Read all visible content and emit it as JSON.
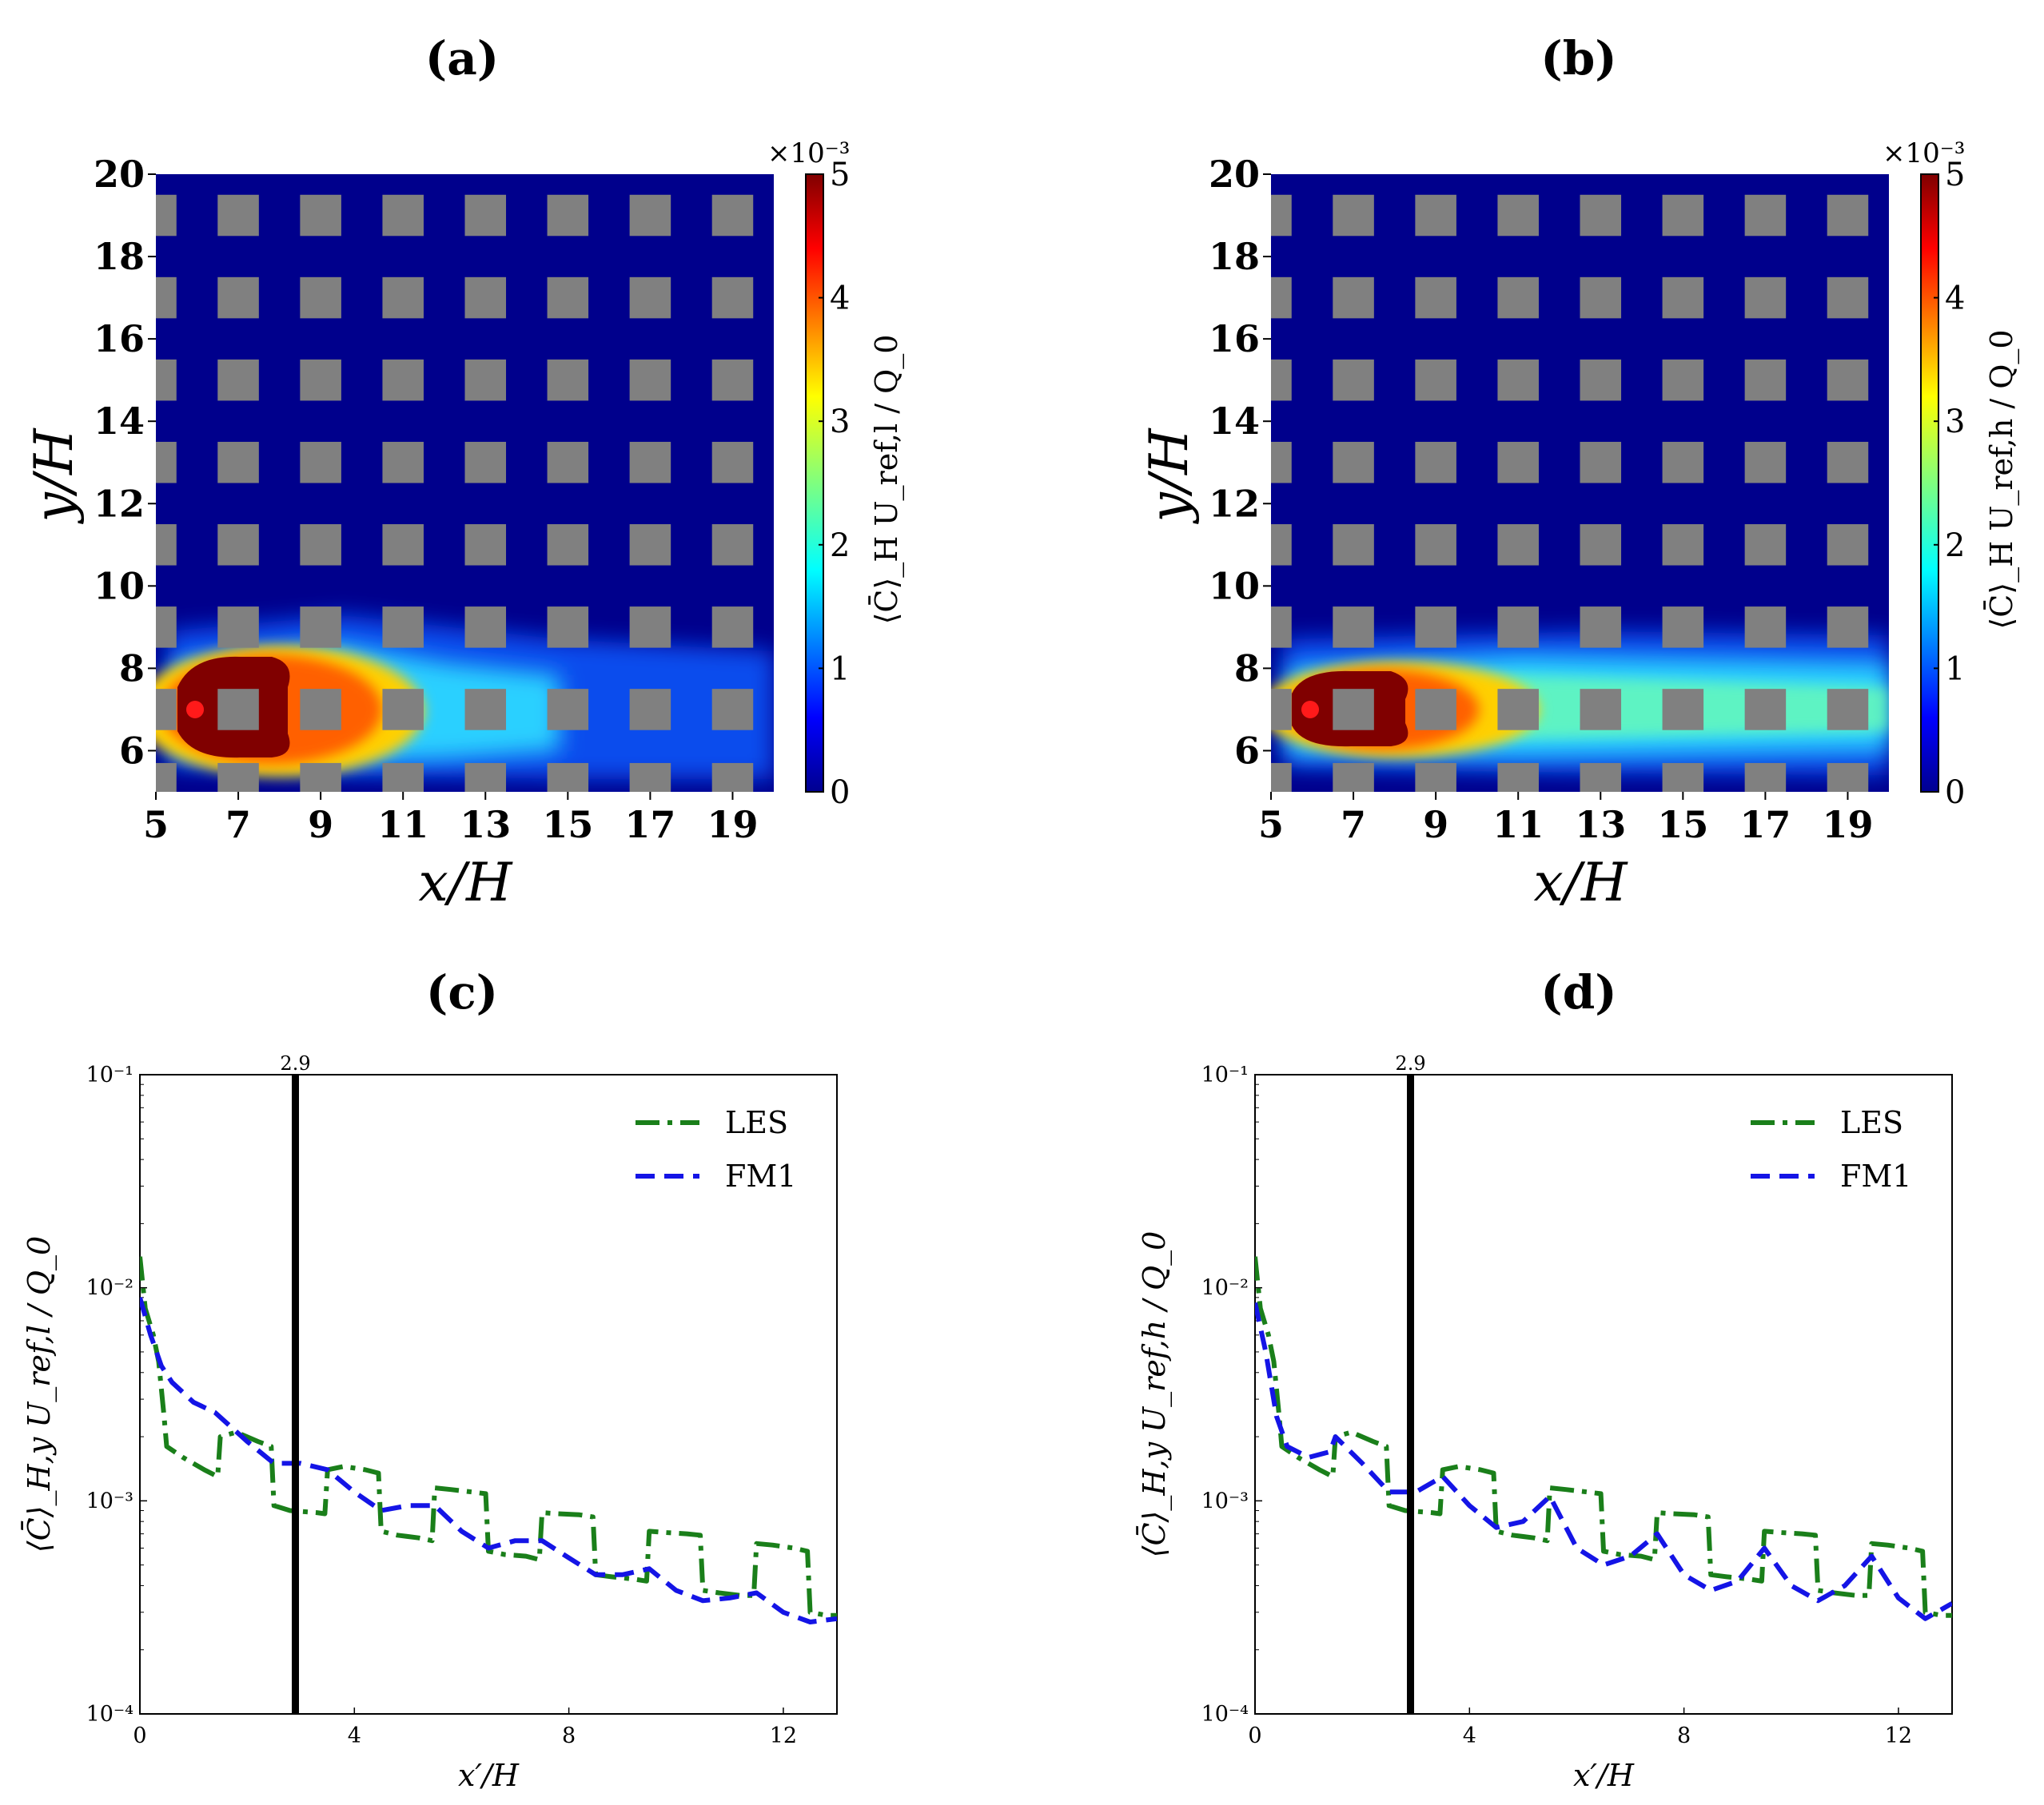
{
  "figure": {
    "panel_labels": [
      "(a)",
      "(b)",
      "(c)",
      "(d)"
    ],
    "colorbar_scale": "×10⁻³",
    "colorbar_ticks": [
      "0",
      "1",
      "2",
      "3",
      "4",
      "5"
    ],
    "colors": {
      "les": "#1a7f1a",
      "fm1": "#1414e6",
      "field_bg": "#00008c",
      "building": "#808080",
      "source": "#ff1a1a",
      "vline": "#000000"
    }
  },
  "chart_data": [
    {
      "panel": "(a)",
      "type": "heatmap",
      "xlabel": "x/H",
      "ylabel": "y/H",
      "xlim": [
        5,
        20
      ],
      "ylim": [
        5,
        20
      ],
      "xticks": [
        5,
        7,
        9,
        11,
        13,
        15,
        17,
        19
      ],
      "yticks": [
        6,
        8,
        10,
        12,
        14,
        16,
        18,
        20
      ],
      "colorbar_label": "⟨C̄⟩_H U_ref,l / Q_0",
      "colorbar_range": [
        0,
        5
      ],
      "colorbar_multiplier": "1e-3",
      "source_point": [
        6,
        7
      ],
      "building_columns_x": [
        5.25,
        7.0,
        9.0,
        11.0,
        13.0,
        15.0,
        17.0,
        19.0
      ],
      "building_rows_y": [
        5.2,
        7.0,
        9.0,
        11.0,
        13.0,
        15.0,
        17.0,
        19.0
      ],
      "plume": "short"
    },
    {
      "panel": "(b)",
      "type": "heatmap",
      "xlabel": "x/H",
      "ylabel": "y/H",
      "xlim": [
        5,
        20
      ],
      "ylim": [
        5,
        20
      ],
      "xticks": [
        5,
        7,
        9,
        11,
        13,
        15,
        17,
        19
      ],
      "yticks": [
        6,
        8,
        10,
        12,
        14,
        16,
        18,
        20
      ],
      "colorbar_label": "⟨C̄⟩_H U_ref,h / Q_0",
      "colorbar_range": [
        0,
        5
      ],
      "colorbar_multiplier": "1e-3",
      "source_point": [
        6,
        7
      ],
      "building_columns_x": [
        5.25,
        7.0,
        9.0,
        11.0,
        13.0,
        15.0,
        17.0,
        19.0
      ],
      "building_rows_y": [
        5.2,
        7.0,
        9.0,
        11.0,
        13.0,
        15.0,
        17.0,
        19.0
      ],
      "plume": "long"
    },
    {
      "panel": "(c)",
      "type": "line",
      "yscale": "log",
      "xlabel": "x′/H",
      "ylabel": "⟨C̄⟩_H,y U_ref,l / Q_0",
      "xlim": [
        0,
        13
      ],
      "ylim": [
        0.0001,
        0.1
      ],
      "xticks": [
        0,
        4,
        8,
        12
      ],
      "yticks": [
        "10⁻⁴",
        "10⁻³",
        "10⁻²",
        "10⁻¹"
      ],
      "vline": {
        "x": 2.9,
        "label": "2.9"
      },
      "legend": [
        "LES",
        "FM1"
      ],
      "legend_loc": "top-right",
      "series": [
        {
          "name": "LES",
          "style": "dash-dot",
          "x": [
            0,
            0.1,
            0.25,
            0.35,
            0.45,
            0.5,
            0.8,
            1.2,
            1.45,
            1.5,
            1.8,
            2.2,
            2.45,
            2.5,
            2.8,
            3.3,
            3.45,
            3.5,
            3.8,
            4.2,
            4.45,
            4.5,
            4.8,
            5.2,
            5.45,
            5.5,
            5.8,
            6.2,
            6.45,
            6.5,
            6.8,
            7.2,
            7.45,
            7.5,
            7.8,
            8.2,
            8.45,
            8.5,
            8.8,
            9.2,
            9.45,
            9.5,
            9.8,
            10.2,
            10.45,
            10.5,
            10.8,
            11.2,
            11.45,
            11.5,
            11.8,
            12.2,
            12.45,
            12.5,
            12.8,
            13.0
          ],
          "y": [
            0.014,
            0.008,
            0.006,
            0.0045,
            0.0025,
            0.0018,
            0.0016,
            0.0014,
            0.0013,
            0.002,
            0.0021,
            0.0019,
            0.0018,
            0.00095,
            0.0009,
            0.00088,
            0.00087,
            0.0014,
            0.00145,
            0.0014,
            0.00135,
            0.00072,
            0.00069,
            0.00067,
            0.00065,
            0.00115,
            0.00113,
            0.0011,
            0.00108,
            0.00058,
            0.00056,
            0.00055,
            0.00053,
            0.00088,
            0.00087,
            0.00086,
            0.00084,
            0.00045,
            0.00044,
            0.00043,
            0.00042,
            0.00072,
            0.00071,
            0.0007,
            0.00069,
            0.00038,
            0.00037,
            0.00036,
            0.00036,
            0.00063,
            0.00062,
            0.0006,
            0.00058,
            0.0003,
            0.00029,
            0.00029
          ]
        },
        {
          "name": "FM1",
          "style": "dashed",
          "x": [
            0,
            0.2,
            0.4,
            0.6,
            1.0,
            1.4,
            2.0,
            2.5,
            3.0,
            3.5,
            4.0,
            4.5,
            5.0,
            5.5,
            6.0,
            6.5,
            7.0,
            7.5,
            8.0,
            8.5,
            9.0,
            9.5,
            10.0,
            10.5,
            11.0,
            11.5,
            12.0,
            12.5,
            13.0
          ],
          "y": [
            0.009,
            0.006,
            0.0043,
            0.0036,
            0.0029,
            0.0026,
            0.0019,
            0.0015,
            0.0015,
            0.0014,
            0.0011,
            0.0009,
            0.00095,
            0.00095,
            0.00072,
            0.0006,
            0.00065,
            0.00065,
            0.00054,
            0.00045,
            0.00045,
            0.00048,
            0.00038,
            0.00034,
            0.00035,
            0.00037,
            0.0003,
            0.00027,
            0.00028
          ]
        }
      ]
    },
    {
      "panel": "(d)",
      "type": "line",
      "yscale": "log",
      "xlabel": "x′/H",
      "ylabel": "⟨C̄⟩_H,y U_ref,h / Q_0",
      "xlim": [
        0,
        13
      ],
      "ylim": [
        0.0001,
        0.1
      ],
      "xticks": [
        0,
        4,
        8,
        12
      ],
      "yticks": [
        "10⁻⁴",
        "10⁻³",
        "10⁻²",
        "10⁻¹"
      ],
      "vline": {
        "x": 2.9,
        "label": "2.9"
      },
      "legend": [
        "LES",
        "FM1"
      ],
      "legend_loc": "top-right",
      "series": [
        {
          "name": "LES",
          "style": "dash-dot",
          "x": [
            0,
            0.1,
            0.25,
            0.35,
            0.45,
            0.5,
            0.8,
            1.2,
            1.45,
            1.5,
            1.8,
            2.2,
            2.45,
            2.5,
            2.8,
            3.3,
            3.45,
            3.5,
            3.8,
            4.2,
            4.45,
            4.5,
            4.8,
            5.2,
            5.45,
            5.5,
            5.8,
            6.2,
            6.45,
            6.5,
            6.8,
            7.2,
            7.45,
            7.5,
            7.8,
            8.2,
            8.45,
            8.5,
            8.8,
            9.2,
            9.45,
            9.5,
            9.8,
            10.2,
            10.45,
            10.5,
            10.8,
            11.2,
            11.45,
            11.5,
            11.8,
            12.2,
            12.45,
            12.5,
            12.8,
            13.0
          ],
          "y": [
            0.014,
            0.008,
            0.006,
            0.0045,
            0.0025,
            0.0018,
            0.0016,
            0.0014,
            0.0013,
            0.002,
            0.0021,
            0.0019,
            0.0018,
            0.00095,
            0.0009,
            0.00088,
            0.00087,
            0.0014,
            0.00145,
            0.0014,
            0.00135,
            0.00072,
            0.00069,
            0.00067,
            0.00065,
            0.00115,
            0.00113,
            0.0011,
            0.00108,
            0.00058,
            0.00056,
            0.00055,
            0.00053,
            0.00088,
            0.00087,
            0.00086,
            0.00084,
            0.00045,
            0.00044,
            0.00043,
            0.00042,
            0.00072,
            0.00071,
            0.0007,
            0.00069,
            0.00038,
            0.00037,
            0.00036,
            0.00036,
            0.00063,
            0.00062,
            0.0006,
            0.00058,
            0.0003,
            0.00029,
            0.00029
          ]
        },
        {
          "name": "FM1",
          "style": "dashed",
          "x": [
            0,
            0.2,
            0.4,
            0.6,
            1.0,
            1.4,
            1.5,
            2.0,
            2.5,
            3.0,
            3.5,
            4.0,
            4.5,
            5.0,
            5.5,
            6.0,
            6.5,
            7.0,
            7.5,
            8.0,
            8.5,
            9.0,
            9.5,
            10.0,
            10.5,
            11.0,
            11.5,
            12.0,
            12.5,
            13.0
          ],
          "y": [
            0.0085,
            0.005,
            0.0025,
            0.0018,
            0.0016,
            0.0017,
            0.002,
            0.0015,
            0.0011,
            0.0011,
            0.0013,
            0.00095,
            0.00075,
            0.0008,
            0.00105,
            0.0006,
            0.0005,
            0.00055,
            0.0007,
            0.00045,
            0.00038,
            0.00042,
            0.0006,
            0.0004,
            0.00034,
            0.0004,
            0.00055,
            0.00035,
            0.00028,
            0.00033
          ]
        }
      ]
    }
  ]
}
